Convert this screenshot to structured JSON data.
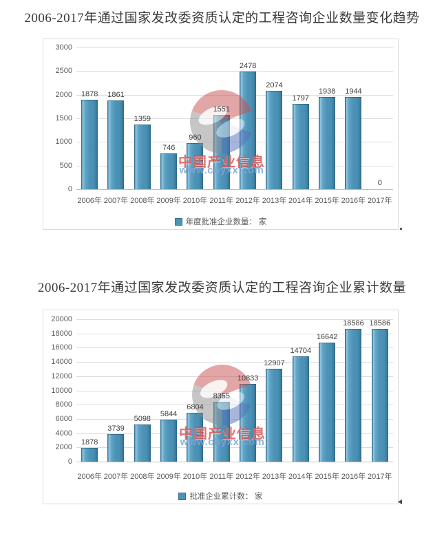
{
  "watermark": {
    "brand_text": "中国产业信息",
    "url_text": "www.chyxx.com",
    "brand_color": "#d13b3b",
    "url_color": "#7da4d5"
  },
  "chart_data": [
    {
      "type": "bar",
      "title": "2006-2017年通过国家发改委资质认定的工程咨询企业数量变化趋势",
      "categories": [
        "2006年",
        "2007年",
        "2008年",
        "2009年",
        "2010年",
        "2011年",
        "2012年",
        "2013年",
        "2014年",
        "2015年",
        "2016年",
        "2017年"
      ],
      "values": [
        1878,
        1861,
        1359,
        746,
        960,
        1551,
        2478,
        2074,
        1797,
        1938,
        1944,
        0
      ],
      "legend": "年度批准企业数量： 家",
      "xlabel": "",
      "ylabel": "",
      "ylim": [
        0,
        3000
      ],
      "ystep": 500,
      "grid": true,
      "legend_position": "bottom",
      "bar_color": "#4e93b6"
    },
    {
      "type": "bar",
      "title": "2006-2017年通过国家发改委资质认定的工程咨询企业累计数量",
      "categories": [
        "2006年",
        "2007年",
        "2008年",
        "2009年",
        "2010年",
        "2011年",
        "2012年",
        "2013年",
        "2014年",
        "2015年",
        "2016年",
        "2017年"
      ],
      "values": [
        1878,
        3739,
        5098,
        5844,
        6804,
        8355,
        10833,
        12907,
        14704,
        16642,
        18586,
        18586
      ],
      "legend": "批准企业累计数： 家",
      "xlabel": "",
      "ylabel": "",
      "ylim": [
        0,
        20000
      ],
      "ystep": 2000,
      "grid": true,
      "legend_position": "bottom",
      "bar_color": "#4e93b6"
    }
  ]
}
